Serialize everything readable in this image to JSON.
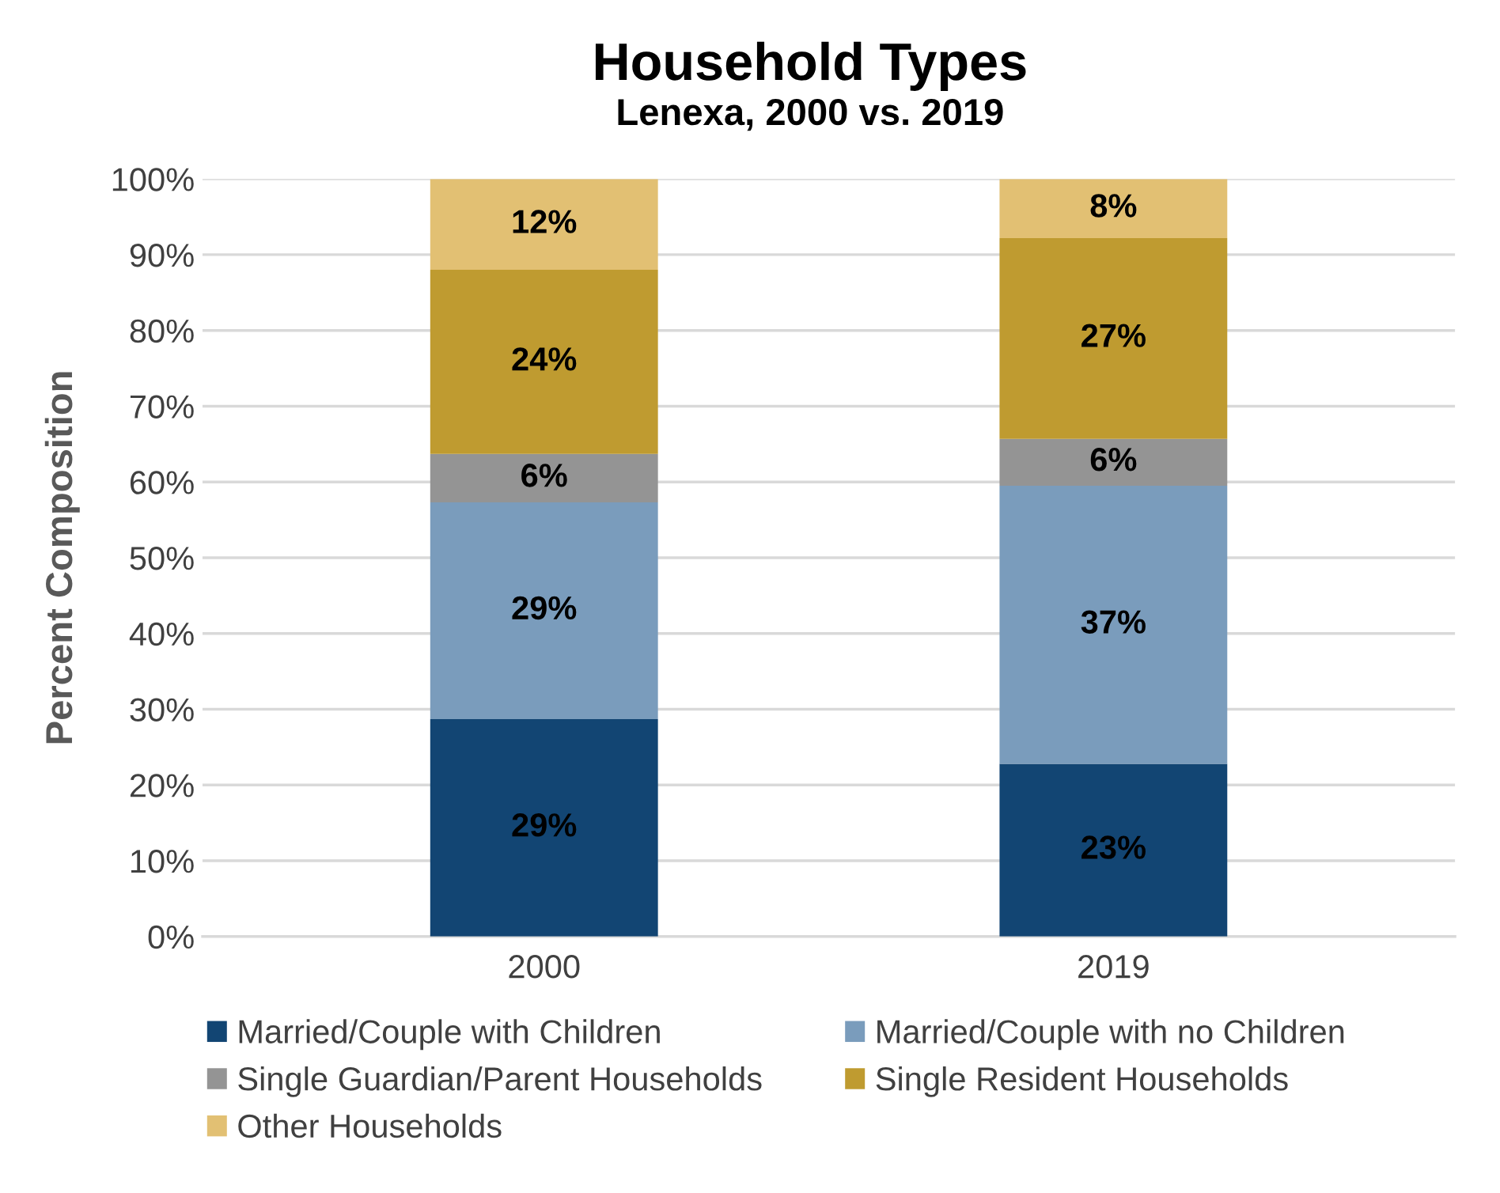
{
  "chart_data": {
    "type": "bar",
    "title": "Household Types",
    "subtitle": "Lenexa, 2000 vs. 2019",
    "ylabel": "Percent Composition",
    "categories": [
      "2000",
      "2019"
    ],
    "stacked": true,
    "series": [
      {
        "name": "Married/Couple with Children",
        "color": "#124573",
        "values": [
          28.7,
          22.8
        ],
        "value_labels": [
          "29%",
          "23%"
        ]
      },
      {
        "name": "Married/Couple with no Children",
        "color": "#7a9cbc",
        "values": [
          28.6,
          36.7
        ],
        "value_labels": [
          "29%",
          "37%"
        ]
      },
      {
        "name": "Single Guardian/Parent Households",
        "color": "#949494",
        "values": [
          6.4,
          6.2
        ],
        "value_labels": [
          "6%",
          "6%"
        ]
      },
      {
        "name": "Single Resident Households",
        "color": "#bf9b30",
        "values": [
          24.3,
          26.5
        ],
        "value_labels": [
          "24%",
          "27%"
        ]
      },
      {
        "name": "Other Households",
        "color": "#e2c073",
        "values": [
          12.0,
          7.8
        ],
        "value_labels": [
          "12%",
          "8%"
        ]
      }
    ],
    "ylim": [
      0,
      100
    ],
    "yticks": [
      {
        "value": 0,
        "label": "0%"
      },
      {
        "value": 10,
        "label": "10%"
      },
      {
        "value": 20,
        "label": "20%"
      },
      {
        "value": 30,
        "label": "30%"
      },
      {
        "value": 40,
        "label": "40%"
      },
      {
        "value": 50,
        "label": "50%"
      },
      {
        "value": 60,
        "label": "60%"
      },
      {
        "value": 70,
        "label": "70%"
      },
      {
        "value": 80,
        "label": "80%"
      },
      {
        "value": 90,
        "label": "90%"
      },
      {
        "value": 100,
        "label": "100%"
      }
    ],
    "grid": "y",
    "legend": "bottom"
  }
}
